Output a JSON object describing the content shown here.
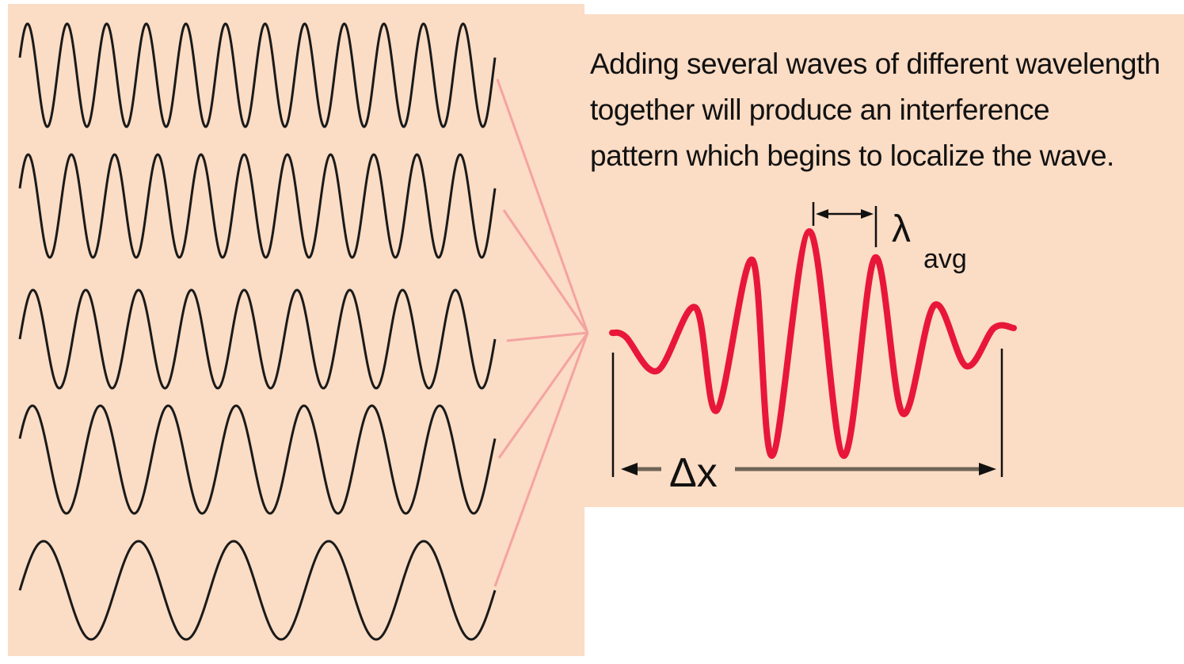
{
  "caption": {
    "line1": "Adding several waves of different wavelength",
    "line2": "together will produce an interference",
    "line3": "pattern which begins to localize the wave."
  },
  "labels": {
    "lambda": "λ",
    "lambda_subscript": "avg",
    "delta_x": "Δx"
  },
  "colors": {
    "background": "#fbdcc4",
    "component_waves": "#1a1a1a",
    "converging_lines": "#f4a3a0",
    "wave_packet": "#e8173a",
    "arrow": "#6e6456"
  },
  "component_waves": [
    {
      "cycles": 12
    },
    {
      "cycles": 11
    },
    {
      "cycles": 9
    },
    {
      "cycles": 7
    },
    {
      "cycles": 5
    }
  ]
}
